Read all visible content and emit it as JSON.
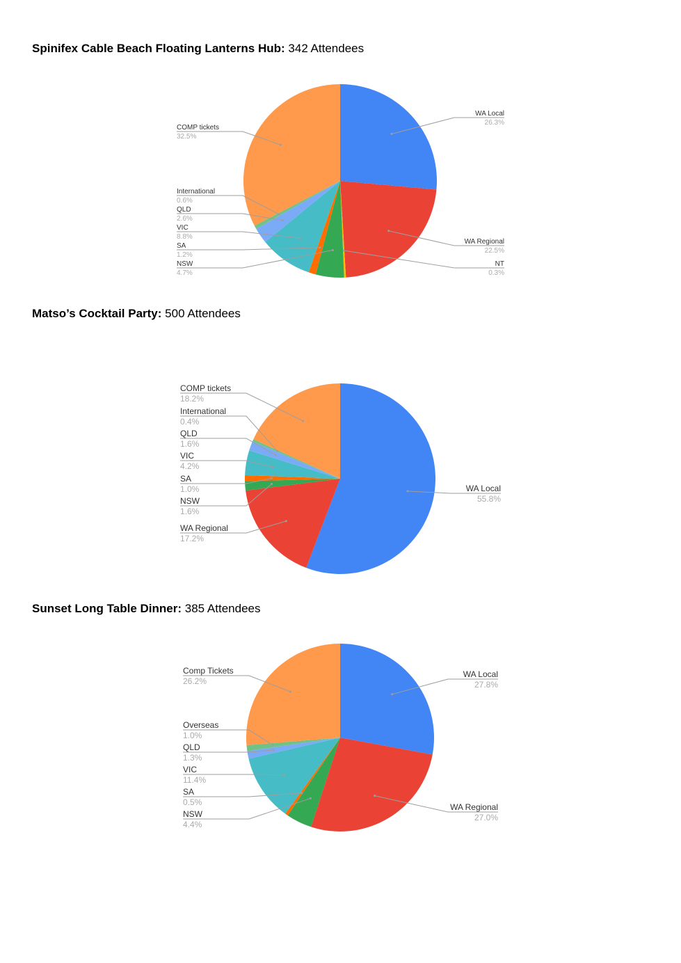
{
  "sections": [
    {
      "title": "Spinifex Cable Beach Floating Lanterns Hub:",
      "attendees": "342 Attendees"
    },
    {
      "title": "Matso’s Cocktail Party:",
      "attendees": "500 Attendees"
    },
    {
      "title": "Sunset Long Table Dinner:",
      "attendees": "385 Attendees"
    }
  ],
  "colors": {
    "wa_local": "#4285f4",
    "wa_regional": "#ea4335",
    "nt": "#fbbc04",
    "nsw": "#34a853",
    "sa": "#ff6d01",
    "vic": "#46bdc6",
    "qld": "#7baaf7",
    "international": "#71c287",
    "comp": "#ff994b"
  },
  "chart_data": [
    {
      "type": "pie",
      "title": "",
      "slices": [
        {
          "label": "WA Local",
          "value": 26.3,
          "display": "26.3%",
          "color": "#4285f4"
        },
        {
          "label": "WA Regional",
          "value": 22.5,
          "display": "22.5%",
          "color": "#ea4335"
        },
        {
          "label": "NT",
          "value": 0.3,
          "display": "0.3%",
          "color": "#fbbc04"
        },
        {
          "label": "NSW",
          "value": 4.7,
          "display": "4.7%",
          "color": "#34a853"
        },
        {
          "label": "SA",
          "value": 1.2,
          "display": "1.2%",
          "color": "#ff6d01"
        },
        {
          "label": "VIC",
          "value": 8.8,
          "display": "8.8%",
          "color": "#46bdc6"
        },
        {
          "label": "QLD",
          "value": 2.6,
          "display": "2.6%",
          "color": "#7baaf7"
        },
        {
          "label": "International",
          "value": 0.6,
          "display": "0.6%",
          "color": "#71c287"
        },
        {
          "label": "COMP tickets",
          "value": 32.5,
          "display": "32.5%",
          "color": "#ff994b"
        }
      ]
    },
    {
      "type": "pie",
      "title": "",
      "slices": [
        {
          "label": "WA Local",
          "value": 55.8,
          "display": "55.8%",
          "color": "#4285f4"
        },
        {
          "label": "WA Regional",
          "value": 17.2,
          "display": "17.2%",
          "color": "#ea4335"
        },
        {
          "label": "NSW",
          "value": 1.6,
          "display": "1.6%",
          "color": "#34a853"
        },
        {
          "label": "SA",
          "value": 1.0,
          "display": "1.0%",
          "color": "#ff6d01"
        },
        {
          "label": "VIC",
          "value": 4.2,
          "display": "4.2%",
          "color": "#46bdc6"
        },
        {
          "label": "QLD",
          "value": 1.6,
          "display": "1.6%",
          "color": "#7baaf7"
        },
        {
          "label": "International",
          "value": 0.4,
          "display": "0.4%",
          "color": "#71c287"
        },
        {
          "label": "COMP tickets",
          "value": 18.2,
          "display": "18.2%",
          "color": "#ff994b"
        }
      ]
    },
    {
      "type": "pie",
      "title": "",
      "slices": [
        {
          "label": "WA Local",
          "value": 27.8,
          "display": "27.8%",
          "color": "#4285f4"
        },
        {
          "label": "WA Regional",
          "value": 27.0,
          "display": "27.0%",
          "color": "#ea4335"
        },
        {
          "label": "NSW",
          "value": 4.4,
          "display": "4.4%",
          "color": "#34a853"
        },
        {
          "label": "SA",
          "value": 0.5,
          "display": "0.5%",
          "color": "#ff6d01"
        },
        {
          "label": "VIC",
          "value": 11.4,
          "display": "11.4%",
          "color": "#46bdc6"
        },
        {
          "label": "QLD",
          "value": 1.3,
          "display": "1.3%",
          "color": "#7baaf7"
        },
        {
          "label": "Overseas",
          "value": 1.0,
          "display": "1.0%",
          "color": "#71c287"
        },
        {
          "label": "Comp Tickets",
          "value": 26.2,
          "display": "26.2%",
          "color": "#ff994b"
        }
      ]
    }
  ]
}
